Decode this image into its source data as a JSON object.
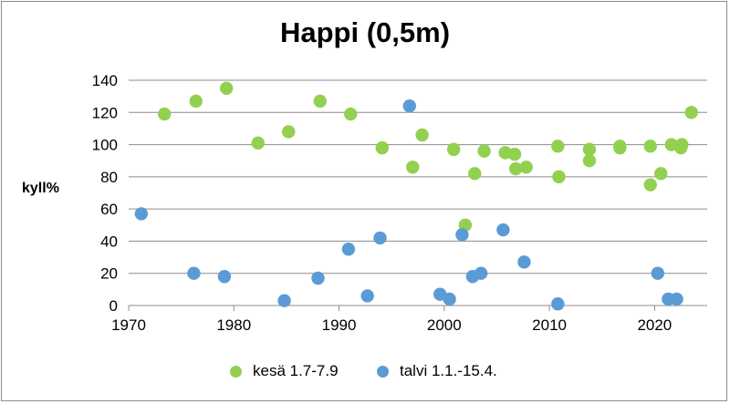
{
  "chart_data": {
    "type": "scatter",
    "title": "Happi (0,5m)",
    "xlabel": "",
    "ylabel": "kyll%",
    "xlim": [
      1970,
      2025
    ],
    "ylim": [
      0,
      140
    ],
    "xticks": [
      1970,
      1980,
      1990,
      2000,
      2010,
      2020
    ],
    "yticks": [
      0,
      20,
      40,
      60,
      80,
      100,
      120,
      140
    ],
    "grid": "horizontal",
    "legend_position": "bottom",
    "series": [
      {
        "name": "kesä 1.7-7.9",
        "color": "#92d050",
        "points": [
          [
            1973.4,
            119
          ],
          [
            1976.4,
            127
          ],
          [
            1979.3,
            135
          ],
          [
            1982.3,
            101
          ],
          [
            1985.2,
            108
          ],
          [
            1988.2,
            127
          ],
          [
            1991.1,
            119
          ],
          [
            1994.1,
            98
          ],
          [
            1997,
            86
          ],
          [
            1997.9,
            106
          ],
          [
            2000.9,
            97
          ],
          [
            2002,
            50
          ],
          [
            2002.9,
            82
          ],
          [
            2003.8,
            96
          ],
          [
            2005.8,
            95
          ],
          [
            2006.7,
            94
          ],
          [
            2006.8,
            85
          ],
          [
            2007.8,
            86
          ],
          [
            2010.8,
            99
          ],
          [
            2010.9,
            80
          ],
          [
            2013.8,
            97
          ],
          [
            2013.8,
            90
          ],
          [
            2016.7,
            99
          ],
          [
            2016.7,
            98
          ],
          [
            2019.6,
            99
          ],
          [
            2019.6,
            75
          ],
          [
            2020.6,
            82
          ],
          [
            2021.6,
            100
          ],
          [
            2022.5,
            98
          ],
          [
            2022.6,
            100
          ],
          [
            2023.5,
            120
          ]
        ]
      },
      {
        "name": "talvi 1.1.-15.4.",
        "color": "#5b9bd5",
        "points": [
          [
            1971.2,
            57
          ],
          [
            1976.2,
            20
          ],
          [
            1979.1,
            18
          ],
          [
            1984.8,
            3
          ],
          [
            1988,
            17
          ],
          [
            1990.9,
            35
          ],
          [
            1992.7,
            6
          ],
          [
            1993.9,
            42
          ],
          [
            1996.7,
            124
          ],
          [
            1999.6,
            7
          ],
          [
            2000.5,
            4
          ],
          [
            2001.7,
            44
          ],
          [
            2002.7,
            18
          ],
          [
            2003.5,
            20
          ],
          [
            2005.6,
            47
          ],
          [
            2007.6,
            27
          ],
          [
            2010.8,
            1
          ],
          [
            2020.3,
            20
          ],
          [
            2021.3,
            4
          ],
          [
            2022.1,
            4
          ]
        ]
      }
    ]
  }
}
